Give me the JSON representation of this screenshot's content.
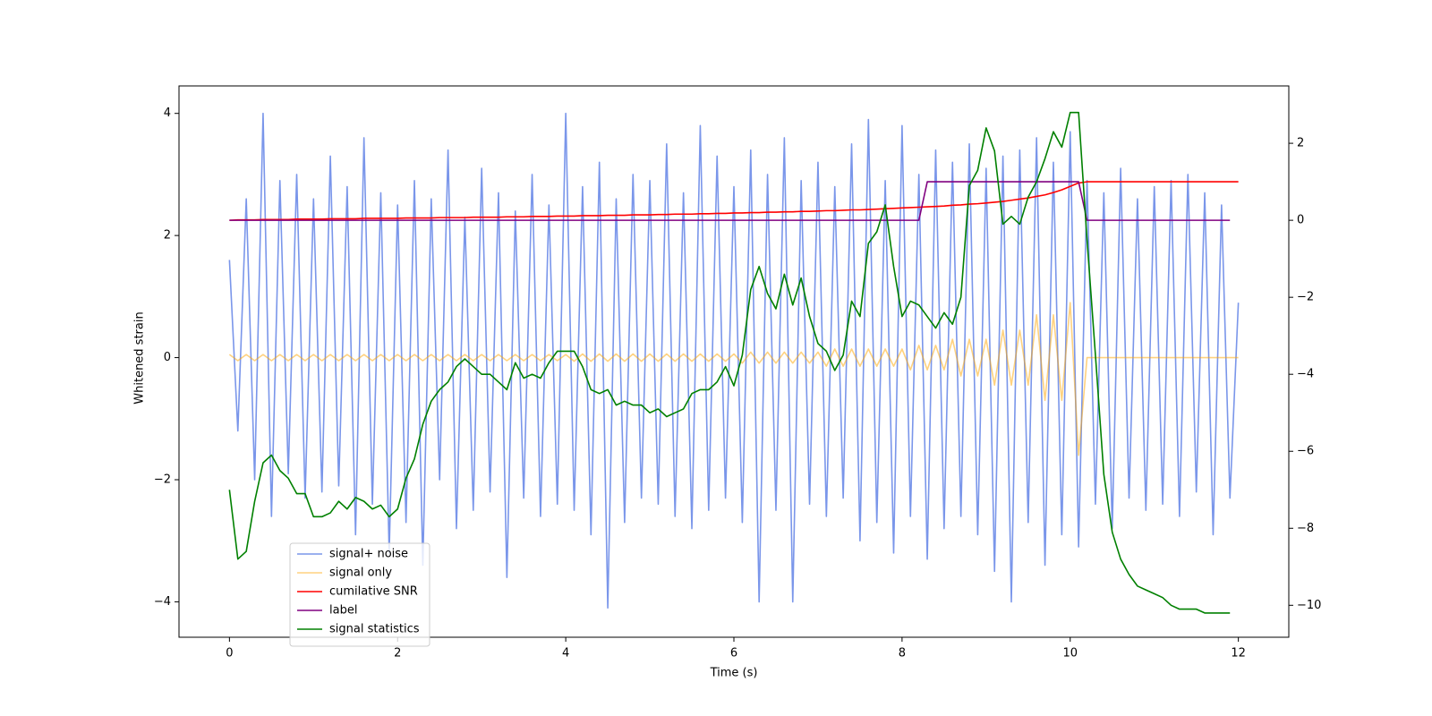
{
  "chart_data": {
    "type": "line",
    "xlabel": "Time (s)",
    "ylabel": "Whitened strain",
    "xlim": [
      -0.6,
      12.6
    ],
    "ylim": [
      -4.58,
      4.45
    ],
    "y2lim": [
      -10.83,
      3.49
    ],
    "xticks": [
      0,
      2,
      4,
      6,
      8,
      10,
      12
    ],
    "yticks": [
      {
        "value": -4,
        "label": "−4"
      },
      {
        "value": -2,
        "label": "−2"
      },
      0,
      2,
      4
    ],
    "y2ticks": [
      {
        "value": -10,
        "label": "−10"
      },
      {
        "value": -8,
        "label": "−8"
      },
      {
        "value": -6,
        "label": "−6"
      },
      {
        "value": -4,
        "label": "−4"
      },
      {
        "value": -2,
        "label": "−2"
      },
      0,
      2
    ],
    "legend": "lower left",
    "x": [
      0,
      0.1,
      0.2,
      0.3,
      0.4,
      0.5,
      0.6,
      0.7,
      0.8,
      0.9,
      1,
      1.1,
      1.2,
      1.3,
      1.4,
      1.5,
      1.6,
      1.7,
      1.8,
      1.9,
      2,
      2.1,
      2.2,
      2.3,
      2.4,
      2.5,
      2.6,
      2.7,
      2.8,
      2.9,
      3,
      3.1,
      3.2,
      3.3,
      3.4,
      3.5,
      3.6,
      3.7,
      3.8,
      3.9,
      4,
      4.1,
      4.2,
      4.3,
      4.4,
      4.5,
      4.6,
      4.7,
      4.8,
      4.9,
      5,
      5.1,
      5.2,
      5.3,
      5.4,
      5.5,
      5.6,
      5.7,
      5.8,
      5.9,
      6,
      6.1,
      6.2,
      6.3,
      6.4,
      6.5,
      6.6,
      6.7,
      6.8,
      6.9,
      7,
      7.1,
      7.2,
      7.3,
      7.4,
      7.5,
      7.6,
      7.7,
      7.8,
      7.9,
      8,
      8.1,
      8.2,
      8.3,
      8.4,
      8.5,
      8.6,
      8.7,
      8.8,
      8.9,
      9,
      9.1,
      9.2,
      9.3,
      9.4,
      9.5,
      9.6,
      9.7,
      9.8,
      9.9,
      10,
      10.1,
      10.2,
      10.3,
      10.4,
      10.5,
      10.6,
      10.7,
      10.8,
      10.9,
      11,
      11.1,
      11.2,
      11.3,
      11.4,
      11.5,
      11.6,
      11.7,
      11.8,
      11.9,
      12
    ],
    "series": [
      {
        "name": "signal+ noise",
        "color": "#4169e1",
        "alpha": 0.7,
        "values": [
          1.6,
          -1.2,
          2.6,
          -2.0,
          4.0,
          -2.6,
          2.9,
          -1.9,
          3.0,
          -2.3,
          2.6,
          -2.2,
          3.3,
          -2.1,
          2.8,
          -2.9,
          3.6,
          -2.4,
          2.7,
          -3.2,
          2.5,
          -2.7,
          2.9,
          -3.4,
          2.6,
          -2.0,
          3.4,
          -2.8,
          2.3,
          -2.5,
          3.1,
          -2.2,
          2.7,
          -3.6,
          2.4,
          -2.3,
          3.0,
          -2.6,
          2.5,
          -2.4,
          4.0,
          -2.5,
          2.8,
          -2.9,
          3.2,
          -4.1,
          2.6,
          -2.7,
          3.0,
          -2.3,
          2.9,
          -2.4,
          3.5,
          -2.6,
          2.7,
          -2.8,
          3.8,
          -2.5,
          3.3,
          -2.3,
          2.8,
          -2.7,
          3.4,
          -4.0,
          3.0,
          -2.5,
          3.6,
          -4.0,
          2.9,
          -2.4,
          3.2,
          -2.6,
          2.8,
          -2.3,
          3.5,
          -3.0,
          3.9,
          -2.7,
          2.9,
          -3.2,
          3.8,
          -2.6,
          3.0,
          -3.3,
          3.4,
          -2.8,
          3.2,
          -2.6,
          3.5,
          -2.9,
          3.1,
          -3.5,
          3.3,
          -4.0,
          3.4,
          -2.7,
          3.6,
          -3.4,
          3.2,
          -2.9,
          3.7,
          -3.1,
          2.9,
          -2.4,
          2.7,
          -2.8,
          3.1,
          -2.3,
          2.6,
          -2.5,
          2.8,
          -2.4,
          2.9,
          -2.6,
          3.0,
          -2.2,
          2.7,
          -2.9,
          2.5,
          -2.3,
          0.9
        ]
      },
      {
        "name": "signal only",
        "color": "#ffa500",
        "alpha": 0.5,
        "values": [
          0.05,
          -0.05,
          0.05,
          -0.05,
          0.05,
          -0.05,
          0.05,
          -0.05,
          0.05,
          -0.05,
          0.05,
          -0.05,
          0.05,
          -0.05,
          0.05,
          -0.05,
          0.05,
          -0.05,
          0.05,
          -0.05,
          0.05,
          -0.05,
          0.05,
          -0.05,
          0.05,
          -0.05,
          0.05,
          -0.05,
          0.05,
          -0.05,
          0.05,
          -0.05,
          0.05,
          -0.05,
          0.05,
          -0.05,
          0.05,
          -0.05,
          0.05,
          -0.05,
          0.05,
          -0.06,
          0.06,
          -0.06,
          0.06,
          -0.06,
          0.06,
          -0.06,
          0.06,
          -0.06,
          0.06,
          -0.06,
          0.06,
          -0.06,
          0.06,
          -0.06,
          0.06,
          -0.06,
          0.06,
          -0.06,
          0.06,
          -0.09,
          0.09,
          -0.09,
          0.09,
          -0.09,
          0.09,
          -0.09,
          0.09,
          -0.09,
          0.09,
          -0.14,
          0.14,
          -0.14,
          0.14,
          -0.14,
          0.14,
          -0.14,
          0.14,
          -0.14,
          0.14,
          -0.2,
          0.2,
          -0.2,
          0.2,
          -0.2,
          0.3,
          -0.3,
          0.3,
          -0.3,
          0.3,
          -0.45,
          0.45,
          -0.45,
          0.45,
          -0.45,
          0.7,
          -0.7,
          0.7,
          -0.7,
          0.9,
          -1.6,
          0,
          0,
          0,
          0,
          0,
          0,
          0,
          0,
          0,
          0,
          0,
          0,
          0,
          0,
          0,
          0,
          0,
          0,
          0
        ]
      },
      {
        "name": "cumilative SNR",
        "color": "#ff0000",
        "axis": "y2",
        "values": [
          0.0,
          0.01,
          0.01,
          0.01,
          0.02,
          0.02,
          0.02,
          0.02,
          0.03,
          0.03,
          0.03,
          0.03,
          0.04,
          0.04,
          0.04,
          0.04,
          0.05,
          0.05,
          0.05,
          0.05,
          0.05,
          0.06,
          0.06,
          0.06,
          0.06,
          0.07,
          0.07,
          0.07,
          0.07,
          0.08,
          0.08,
          0.08,
          0.08,
          0.09,
          0.09,
          0.09,
          0.1,
          0.1,
          0.1,
          0.11,
          0.11,
          0.11,
          0.12,
          0.12,
          0.12,
          0.13,
          0.13,
          0.13,
          0.14,
          0.14,
          0.14,
          0.15,
          0.15,
          0.16,
          0.16,
          0.16,
          0.17,
          0.17,
          0.18,
          0.18,
          0.19,
          0.19,
          0.2,
          0.2,
          0.21,
          0.21,
          0.22,
          0.22,
          0.23,
          0.23,
          0.24,
          0.25,
          0.25,
          0.26,
          0.27,
          0.27,
          0.28,
          0.29,
          0.3,
          0.31,
          0.32,
          0.33,
          0.34,
          0.35,
          0.36,
          0.37,
          0.39,
          0.4,
          0.42,
          0.43,
          0.45,
          0.47,
          0.49,
          0.52,
          0.55,
          0.58,
          0.62,
          0.66,
          0.72,
          0.79,
          0.88,
          0.97,
          1,
          1,
          1,
          1,
          1,
          1,
          1,
          1,
          1,
          1,
          1,
          1,
          1,
          1,
          1,
          1,
          1,
          1,
          1
        ]
      },
      {
        "name": "label",
        "color": "#800080",
        "axis": "y2",
        "values": [
          0,
          0,
          0,
          0,
          0,
          0,
          0,
          0,
          0,
          0,
          0,
          0,
          0,
          0,
          0,
          0,
          0,
          0,
          0,
          0,
          0,
          0,
          0,
          0,
          0,
          0,
          0,
          0,
          0,
          0,
          0,
          0,
          0,
          0,
          0,
          0,
          0,
          0,
          0,
          0,
          0,
          0,
          0,
          0,
          0,
          0,
          0,
          0,
          0,
          0,
          0,
          0,
          0,
          0,
          0,
          0,
          0,
          0,
          0,
          0,
          0,
          0,
          0,
          0,
          0,
          0,
          0,
          0,
          0,
          0,
          0,
          0,
          0,
          0,
          0,
          0,
          0,
          0,
          0,
          0,
          0,
          0,
          0,
          1,
          1,
          1,
          1,
          1,
          1,
          1,
          1,
          1,
          1,
          1,
          1,
          1,
          1,
          1,
          1,
          1,
          1,
          1,
          0,
          0,
          0,
          0,
          0,
          0,
          0,
          0,
          0,
          0,
          0,
          0,
          0,
          0,
          0,
          0,
          0,
          0,
          null
        ]
      },
      {
        "name": "signal statistics",
        "color": "#008000",
        "axis": "y2",
        "values": [
          -7.0,
          -8.8,
          -8.6,
          -7.3,
          -6.3,
          -6.1,
          -6.5,
          -6.7,
          -7.1,
          -7.1,
          -7.7,
          -7.7,
          -7.6,
          -7.3,
          -7.5,
          -7.2,
          -7.3,
          -7.5,
          -7.4,
          -7.7,
          -7.5,
          -6.7,
          -6.2,
          -5.3,
          -4.7,
          -4.4,
          -4.2,
          -3.8,
          -3.6,
          -3.8,
          -4.0,
          -4.0,
          -4.2,
          -4.4,
          -3.7,
          -4.1,
          -4.0,
          -4.1,
          -3.7,
          -3.4,
          -3.4,
          -3.4,
          -3.8,
          -4.4,
          -4.5,
          -4.4,
          -4.8,
          -4.7,
          -4.8,
          -4.8,
          -5.0,
          -4.9,
          -5.1,
          -5.0,
          -4.9,
          -4.5,
          -4.4,
          -4.4,
          -4.2,
          -3.8,
          -4.3,
          -3.5,
          -1.8,
          -1.2,
          -1.9,
          -2.3,
          -1.4,
          -2.2,
          -1.5,
          -2.5,
          -3.2,
          -3.4,
          -3.9,
          -3.5,
          -2.1,
          -2.5,
          -0.6,
          -0.3,
          0.4,
          -1.2,
          -2.5,
          -2.1,
          -2.2,
          -2.5,
          -2.8,
          -2.4,
          -2.7,
          -2.0,
          0.9,
          1.3,
          2.4,
          1.8,
          -0.1,
          0.1,
          -0.1,
          0.6,
          1.0,
          1.6,
          2.3,
          1.9,
          2.8,
          2.8,
          -0.5,
          -3.5,
          -6.6,
          -8.1,
          -8.8,
          -9.2,
          -9.5,
          -9.6,
          -9.7,
          -9.8,
          -10.0,
          -10.1,
          -10.1,
          -10.1,
          -10.2,
          -10.2,
          -10.2,
          -10.2,
          null
        ]
      }
    ]
  }
}
